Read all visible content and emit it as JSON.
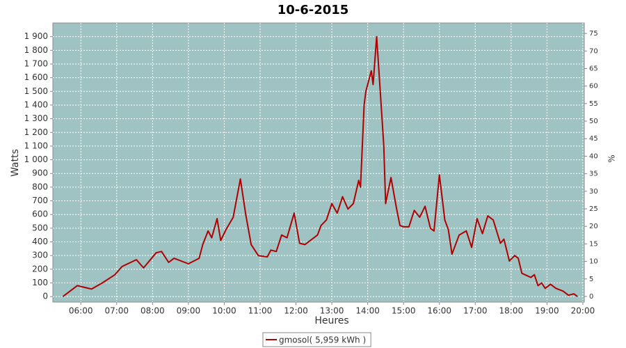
{
  "chart_data": {
    "type": "line",
    "title": "10-6-2015",
    "xlabel": "Heures",
    "ylabel": "Watts",
    "y2label": "%",
    "x": [
      5.5,
      5.9,
      6.3,
      6.6,
      6.95,
      7.15,
      7.55,
      7.75,
      8.1,
      8.25,
      8.45,
      8.6,
      9.0,
      9.3,
      9.4,
      9.55,
      9.65,
      9.8,
      9.9,
      10.05,
      10.25,
      10.45,
      10.6,
      10.75,
      10.95,
      11.2,
      11.3,
      11.45,
      11.6,
      11.75,
      11.95,
      12.1,
      12.25,
      12.4,
      12.6,
      12.7,
      12.85,
      13.0,
      13.15,
      13.3,
      13.45,
      13.6,
      13.75,
      13.8,
      13.9,
      13.95,
      14.1,
      14.15,
      14.25,
      14.35,
      14.45,
      14.5,
      14.65,
      14.8,
      14.9,
      15.0,
      15.15,
      15.3,
      15.45,
      15.6,
      15.75,
      15.85,
      16.0,
      16.15,
      16.25,
      16.35,
      16.55,
      16.75,
      16.9,
      17.05,
      17.2,
      17.35,
      17.5,
      17.7,
      17.8,
      17.95,
      18.1,
      18.2,
      18.3,
      18.55,
      18.65,
      18.75,
      18.85,
      18.95,
      19.1,
      19.25,
      19.45,
      19.6,
      19.75,
      19.85
    ],
    "series": [
      {
        "name": "gmosol( 5,959 kWh )",
        "color": "#b00000",
        "values": [
          0,
          80,
          55,
          100,
          160,
          220,
          270,
          210,
          320,
          330,
          250,
          280,
          240,
          280,
          380,
          480,
          430,
          570,
          410,
          490,
          580,
          860,
          600,
          380,
          300,
          290,
          340,
          330,
          450,
          430,
          610,
          390,
          380,
          410,
          450,
          520,
          560,
          680,
          610,
          730,
          640,
          680,
          850,
          800,
          1400,
          1500,
          1650,
          1550,
          1900,
          1500,
          1100,
          680,
          870,
          650,
          520,
          510,
          510,
          630,
          580,
          660,
          500,
          480,
          890,
          560,
          490,
          310,
          450,
          480,
          360,
          570,
          460,
          590,
          560,
          390,
          420,
          260,
          300,
          280,
          170,
          140,
          160,
          80,
          100,
          60,
          90,
          60,
          40,
          10,
          20,
          0
        ]
      }
    ],
    "xlim": [
      5.22,
      20.04
    ],
    "xticks": [
      {
        "value": 6,
        "label": "06:00"
      },
      {
        "value": 7,
        "label": "07:00"
      },
      {
        "value": 8,
        "label": "08:00"
      },
      {
        "value": 9,
        "label": "09:00"
      },
      {
        "value": 10,
        "label": "10:00"
      },
      {
        "value": 11,
        "label": "11:00"
      },
      {
        "value": 12,
        "label": "12:00"
      },
      {
        "value": 13,
        "label": "13:00"
      },
      {
        "value": 14,
        "label": "14:00"
      },
      {
        "value": 15,
        "label": "15:00"
      },
      {
        "value": 16,
        "label": "16:00"
      },
      {
        "value": 17,
        "label": "17:00"
      },
      {
        "value": 18,
        "label": "18:00"
      },
      {
        "value": 19,
        "label": "19:00"
      },
      {
        "value": 20,
        "label": "20:00"
      }
    ],
    "ylim": [
      -40,
      2000
    ],
    "yticks": [
      0,
      100,
      200,
      300,
      400,
      500,
      600,
      700,
      800,
      900,
      {
        "value": 1000,
        "label": "1 000"
      },
      {
        "value": 1100,
        "label": "1 100"
      },
      {
        "value": 1200,
        "label": "1 200"
      },
      {
        "value": 1300,
        "label": "1 300"
      },
      {
        "value": 1400,
        "label": "1 400"
      },
      {
        "value": 1500,
        "label": "1 500"
      },
      {
        "value": 1600,
        "label": "1 600"
      },
      {
        "value": 1700,
        "label": "1 700"
      },
      {
        "value": 1800,
        "label": "1 800"
      },
      {
        "value": 1900,
        "label": "1 900"
      }
    ],
    "y2lim": [
      -1.6,
      78
    ],
    "y2ticks": [
      0,
      5,
      10,
      15,
      20,
      25,
      30,
      35,
      40,
      45,
      50,
      55,
      60,
      65,
      70,
      75
    ],
    "grid": true,
    "background": "#9fc3c3"
  }
}
